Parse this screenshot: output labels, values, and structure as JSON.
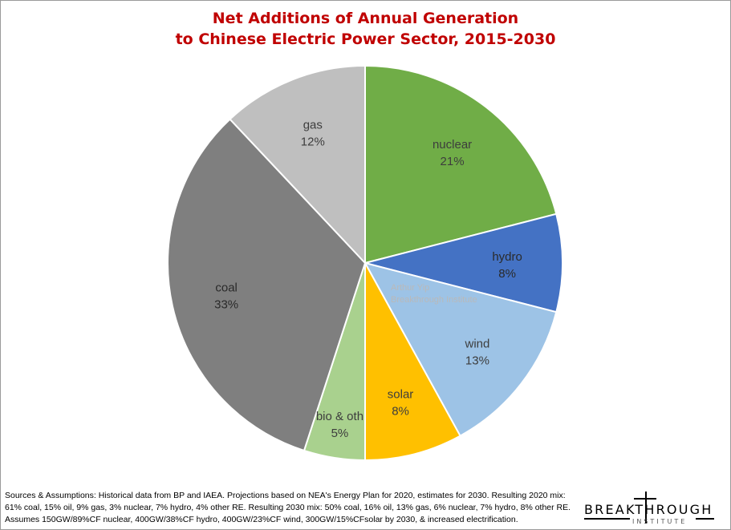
{
  "title_line1": "Net Additions of Annual Generation",
  "title_line2": "to Chinese Electric Power Sector, 2015-2030",
  "watermark_line1": "Arthur Yip",
  "watermark_line2": "Breakthrough Institute",
  "footnote": "Sources & Assumptions: Historical data from BP and IAEA. Projections based on NEA's Energy Plan for 2020, estimates for 2030. Resulting 2020 mix: 61% coal, 15% oil, 9% gas, 3% nuclear, 7% hydro, 4% other RE. Resulting 2030 mix: 50% coal, 16% oil, 13% gas, 6% nuclear, 7% hydro, 8% other RE. Assumes 150GW/89%CF nuclear, 400GW/38%CF hydro, 400GW/23%CF wind, 300GW/15%CFsolar by 2030, & increased electrification.",
  "logo": {
    "word": "BREAKTHROUGH",
    "sub": "INSTITUTE"
  },
  "chart_data": {
    "type": "pie",
    "title": "Net Additions of Annual Generation to Chinese Electric Power Sector, 2015-2030",
    "start_angle_deg": 0,
    "direction": "clockwise",
    "slices": [
      {
        "label": "nuclear",
        "value": 21,
        "value_label": "21%",
        "color": "#70ad47",
        "text_color": "#3d3d3d"
      },
      {
        "label": "hydro",
        "value": 8,
        "value_label": "8%",
        "color": "#4472c4",
        "text_color": "#2a2a2a"
      },
      {
        "label": "wind",
        "value": 13,
        "value_label": "13%",
        "color": "#9dc3e6",
        "text_color": "#3d3d3d"
      },
      {
        "label": "solar",
        "value": 8,
        "value_label": "8%",
        "color": "#ffc000",
        "text_color": "#3d3d3d"
      },
      {
        "label": "bio & oth",
        "value": 5,
        "value_label": "5%",
        "color": "#a9d18e",
        "text_color": "#3d3d3d"
      },
      {
        "label": "coal",
        "value": 33,
        "value_label": "33%",
        "color": "#7f7f7f",
        "text_color": "#2a2a2a"
      },
      {
        "label": "gas",
        "value": 12,
        "value_label": "12%",
        "color": "#bfbfbf",
        "text_color": "#3d3d3d"
      }
    ]
  }
}
